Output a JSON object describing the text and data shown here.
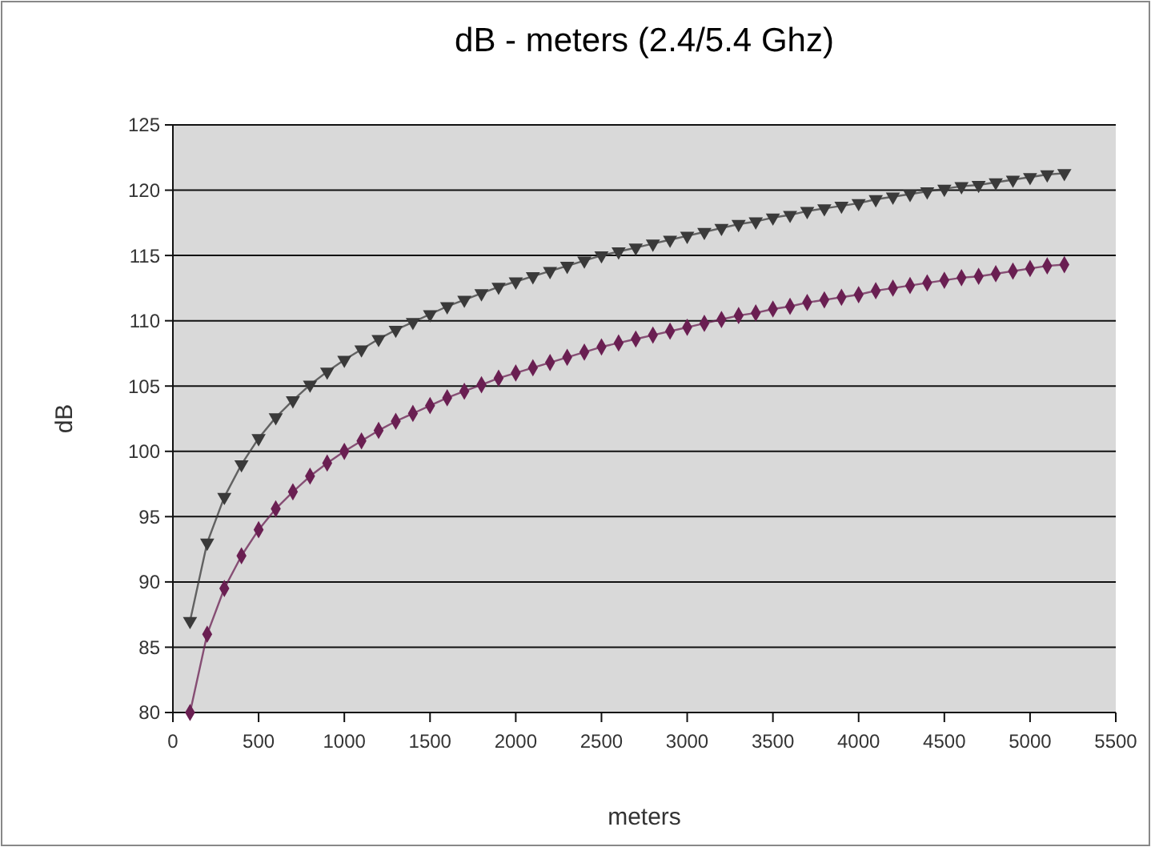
{
  "chart_data": {
    "type": "line",
    "title": "dB - meters (2.4/5.4 Ghz)",
    "xlabel": "meters",
    "ylabel": "dB",
    "x": [
      100,
      200,
      300,
      400,
      500,
      600,
      700,
      800,
      900,
      1000,
      1100,
      1200,
      1300,
      1400,
      1500,
      1600,
      1700,
      1800,
      1900,
      2000,
      2100,
      2200,
      2300,
      2400,
      2500,
      2600,
      2700,
      2800,
      2900,
      3000,
      3100,
      3200,
      3300,
      3400,
      3500,
      3600,
      3700,
      3800,
      3900,
      4000,
      4100,
      4200,
      4300,
      4400,
      4500,
      4600,
      4700,
      4800,
      4900,
      5000,
      5100,
      5200
    ],
    "series": [
      {
        "color": "#3a3a3a",
        "marker": "triangle",
        "values": [
          87,
          93,
          96.5,
          99,
          101,
          102.6,
          103.9,
          105.1,
          106.1,
          107,
          107.8,
          108.6,
          109.3,
          109.9,
          110.5,
          111.1,
          111.6,
          112.1,
          112.6,
          113,
          113.4,
          113.8,
          114.2,
          114.6,
          115,
          115.3,
          115.6,
          115.9,
          116.2,
          116.5,
          116.8,
          117.1,
          117.4,
          117.6,
          117.9,
          118.1,
          118.4,
          118.6,
          118.8,
          119,
          119.3,
          119.5,
          119.7,
          119.9,
          120.1,
          120.3,
          120.4,
          120.6,
          120.8,
          121,
          121.2,
          121.3
        ]
      },
      {
        "color": "#6a1f52",
        "marker": "diamond",
        "values": [
          80,
          86,
          89.5,
          92,
          94,
          95.6,
          96.9,
          98.1,
          99.1,
          100,
          100.8,
          101.6,
          102.3,
          102.9,
          103.5,
          104.1,
          104.6,
          105.1,
          105.6,
          106,
          106.4,
          106.8,
          107.2,
          107.6,
          108,
          108.3,
          108.6,
          108.9,
          109.2,
          109.5,
          109.8,
          110.1,
          110.4,
          110.6,
          110.9,
          111.1,
          111.4,
          111.6,
          111.8,
          112,
          112.3,
          112.5,
          112.7,
          112.9,
          113.1,
          113.3,
          113.4,
          113.6,
          113.8,
          114,
          114.2,
          114.3
        ]
      }
    ],
    "xlim": [
      0,
      5500
    ],
    "xticks": [
      0,
      500,
      1000,
      1500,
      2000,
      2500,
      3000,
      3500,
      4000,
      4500,
      5000,
      5500
    ],
    "ylim": [
      80,
      125
    ],
    "yticks": [
      80,
      85,
      90,
      95,
      100,
      105,
      110,
      115,
      120,
      125
    ],
    "grid": "y",
    "line_style": "solid"
  }
}
